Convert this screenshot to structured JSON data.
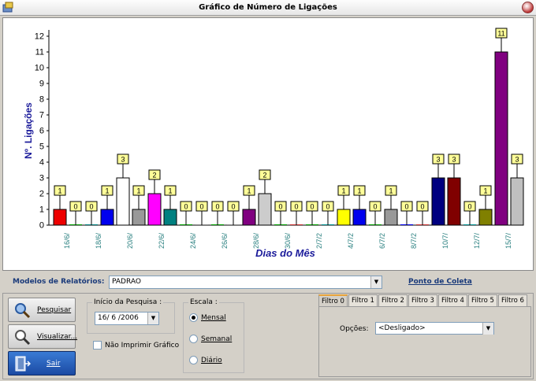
{
  "window": {
    "title": "Gráfico de Número de Ligações"
  },
  "chart_data": {
    "type": "bar",
    "ylabel": "Nº. Ligações",
    "xlabel": "Dias do Mês",
    "ylim": [
      0,
      12
    ],
    "yticks": [
      0,
      1,
      2,
      3,
      4,
      5,
      6,
      7,
      8,
      9,
      10,
      11,
      12
    ],
    "values": [
      1,
      0,
      0,
      1,
      3,
      1,
      2,
      1,
      0,
      0,
      0,
      0,
      1,
      2,
      0,
      0,
      0,
      0,
      1,
      1,
      0,
      1,
      0,
      0,
      3,
      3,
      0,
      1,
      11,
      3
    ],
    "colors": [
      "#ee0000",
      "#00a000",
      "#008080",
      "#0000ee",
      "#ffffff",
      "#999999",
      "#ff00ff",
      "#008080",
      "#00a000",
      "#888888",
      "#00a000",
      "#888888",
      "#800080",
      "#cccccc",
      "#00a000",
      "#cc3333",
      "#00a000",
      "#009090",
      "#ffff00",
      "#0000ee",
      "#00a000",
      "#999999",
      "#0000ee",
      "#cc3333",
      "#000080",
      "#800000",
      "#009090",
      "#808000",
      "#800080",
      "#c0c0c0"
    ],
    "tick_labels": [
      {
        "label": "16/6/",
        "after": 1
      },
      {
        "label": "18/6/",
        "after": 3
      },
      {
        "label": "20/6/",
        "after": 5
      },
      {
        "label": "22/6/",
        "after": 7
      },
      {
        "label": "24/6/",
        "after": 9
      },
      {
        "label": "26/6/",
        "after": 11
      },
      {
        "label": "28/6/",
        "after": 13
      },
      {
        "label": "30/6/",
        "after": 15
      },
      {
        "label": "2/7/2",
        "after": 17
      },
      {
        "label": "4/7/2",
        "after": 19
      },
      {
        "label": "6/7/2",
        "after": 21
      },
      {
        "label": "8/7/2",
        "after": 23
      },
      {
        "label": "10/7/",
        "after": 25
      },
      {
        "label": "12/7/",
        "after": 27
      },
      {
        "label": "15/7/",
        "after": 29
      }
    ],
    "grid": false
  },
  "report": {
    "label": "Modelos de Relatórios:",
    "value": "PADRAO",
    "collect_link": "Ponto de Coleta"
  },
  "buttons": {
    "search": "Pesquisar",
    "preview": "Visualizar...",
    "exit": "Sair"
  },
  "search_start": {
    "legend": "Início da Pesquisa :",
    "date": "16/ 6 /2006",
    "no_print_label": "Não Imprimir  Gráfico"
  },
  "scale": {
    "legend": "Escala :",
    "options": [
      "Mensal",
      "Semanal",
      "Diário"
    ],
    "selected": "Mensal"
  },
  "filters": {
    "tabs": [
      "Filtro 0",
      "Filtro 1",
      "Filtro 2",
      "Filtro 3",
      "Filtro 4",
      "Filtro 5",
      "Filtro 6"
    ],
    "active": "Filtro 0",
    "options_label": "Opções:",
    "options_value": "<Desligado>"
  }
}
